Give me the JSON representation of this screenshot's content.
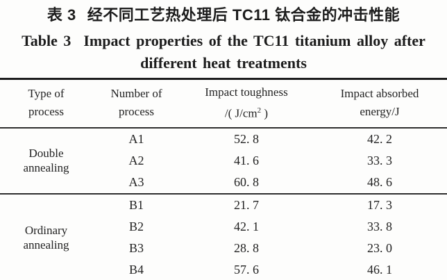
{
  "captions": {
    "chinese_label": "表 3",
    "chinese_text": "经不同工艺热处理后 TC11 钛合金的冲击性能",
    "english_label": "Table 3",
    "english_line1": "Impact properties of the TC11 titanium alloy after",
    "english_line2": "different heat treatments"
  },
  "table": {
    "headers": [
      {
        "line1": "Type of",
        "line2": "process"
      },
      {
        "line1": "Number of",
        "line2": "process"
      },
      {
        "line1": "Impact toughness",
        "line2_pre": "/( J/cm",
        "line2_sup": "2",
        "line2_post": " )"
      },
      {
        "line1": "Impact absorbed",
        "line2": "energy/J"
      }
    ],
    "groups": [
      {
        "type_line1": "Double",
        "type_line2": "annealing",
        "rows": [
          {
            "number": "A1",
            "toughness": "52. 8",
            "energy": "42. 2"
          },
          {
            "number": "A2",
            "toughness": "41. 6",
            "energy": "33. 3"
          },
          {
            "number": "A3",
            "toughness": "60. 8",
            "energy": "48. 6"
          }
        ]
      },
      {
        "type_line1": "Ordinary",
        "type_line2": "annealing",
        "rows": [
          {
            "number": "B1",
            "toughness": "21. 7",
            "energy": "17. 3"
          },
          {
            "number": "B2",
            "toughness": "42. 1",
            "energy": "33. 8"
          },
          {
            "number": "B3",
            "toughness": "28. 8",
            "energy": "23. 0"
          },
          {
            "number": "B4",
            "toughness": "57. 6",
            "energy": "46. 1"
          }
        ]
      }
    ]
  },
  "colors": {
    "rule_thick": "#1d1d1d",
    "rule_thin": "#2e2e2e",
    "text": "#222222",
    "background": "#fdfdfc"
  }
}
